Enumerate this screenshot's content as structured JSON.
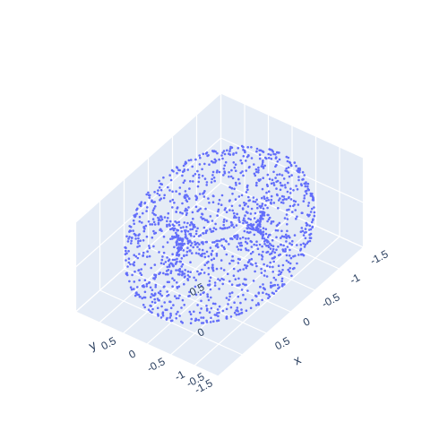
{
  "chart_data": {
    "type": "scatter3d",
    "title": "",
    "axes": {
      "x": {
        "label": "x",
        "range": [
          -1.5,
          1.5
        ],
        "tick_labels": [
          "-1.5",
          "-1",
          "-0.5",
          "0",
          "0.5"
        ]
      },
      "y": {
        "label": "y",
        "range": [
          -1.5,
          1.5
        ],
        "tick_labels": [
          "-1.5",
          "-1",
          "-0.5",
          "0",
          "0.5"
        ]
      },
      "z": {
        "label": "",
        "range": [
          -0.5,
          0.5
        ],
        "tick_labels": [
          "-0.5",
          "0",
          "0.5"
        ]
      }
    },
    "grid": true,
    "shape": "torus",
    "marker_color": "#636efa",
    "scene_background": "#e5ecf6",
    "gridline_color": "#ffffff",
    "point_count": 1500
  }
}
